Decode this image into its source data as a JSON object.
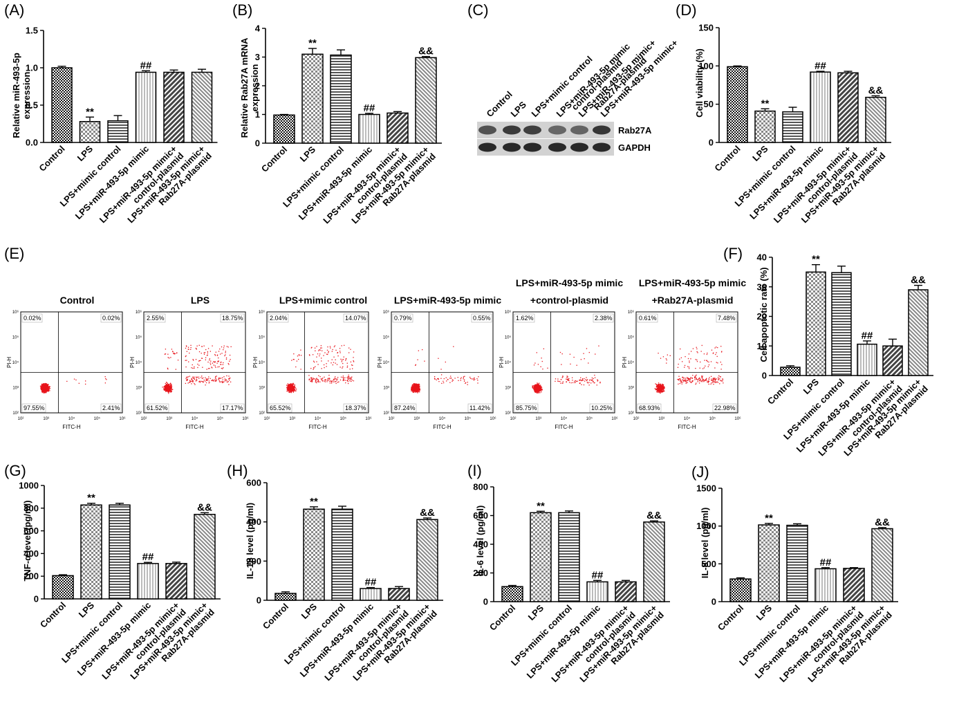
{
  "colors": {
    "axis": "#000000",
    "dots": "#e8141b",
    "bar_edge": "#000000",
    "blot_bg": "#d2d2d2",
    "blot_band": "#202020"
  },
  "categories_full": [
    "Control",
    "LPS",
    "LPS+mimic control",
    "LPS+miR-493-5p mimic",
    "LPS+miR-493-5p mimic+\ncontrol-plasmid",
    "LPS+miR-493-5p mimic+\nRab27A-plasmid"
  ],
  "chart_data": [
    {
      "id": "A",
      "type": "bar",
      "panel_label": "(A)",
      "ylabel": "Relative miR-493-5p\nexpression",
      "ylim": [
        0,
        1.5
      ],
      "yticks": [
        "0.0",
        "0.5",
        "1.0",
        "1.5"
      ],
      "tickvals": [
        0,
        0.5,
        1.0,
        1.5
      ],
      "values": [
        1.0,
        0.28,
        0.29,
        0.94,
        0.94,
        0.94
      ],
      "errors": [
        0.02,
        0.06,
        0.07,
        0.02,
        0.03,
        0.04
      ],
      "sig": [
        "",
        "**",
        "",
        "##",
        "",
        ""
      ]
    },
    {
      "id": "B",
      "type": "bar",
      "panel_label": "(B)",
      "ylabel": "Relative Rab27A mRNA\nexpression",
      "ylim": [
        0,
        4
      ],
      "yticks": [
        "0",
        "1",
        "2",
        "3",
        "4"
      ],
      "tickvals": [
        0,
        1,
        2,
        3,
        4
      ],
      "values": [
        0.98,
        3.1,
        3.07,
        1.0,
        1.05,
        2.98
      ],
      "errors": [
        0.02,
        0.2,
        0.18,
        0.04,
        0.05,
        0.04
      ],
      "sig": [
        "",
        "**",
        "",
        "##",
        "",
        "&&"
      ]
    },
    {
      "id": "D",
      "type": "bar",
      "panel_label": "(D)",
      "ylabel": "Cell viability (%)",
      "ylim": [
        0,
        150
      ],
      "yticks": [
        "0",
        "50",
        "100",
        "150"
      ],
      "tickvals": [
        0,
        50,
        100,
        150
      ],
      "values": [
        99,
        41,
        40,
        92,
        91,
        59
      ],
      "errors": [
        1,
        3,
        6,
        1,
        2,
        2
      ],
      "sig": [
        "",
        "**",
        "",
        "##",
        "",
        "&&"
      ]
    },
    {
      "id": "F",
      "type": "bar",
      "panel_label": "(F)",
      "ylabel": "Cell apoptotic rate (%)",
      "ylim": [
        0,
        40
      ],
      "yticks": [
        "0",
        "10",
        "20",
        "30",
        "40"
      ],
      "tickvals": [
        0,
        10,
        20,
        30,
        40
      ],
      "values": [
        2.8,
        35,
        34.8,
        10.6,
        10,
        29
      ],
      "errors": [
        0.5,
        2.5,
        2.2,
        1.1,
        2.3,
        1.5
      ],
      "sig": [
        "",
        "**",
        "",
        "##",
        "",
        "&&"
      ]
    },
    {
      "id": "G",
      "type": "bar",
      "panel_label": "(G)",
      "ylabel": "TNF-α level (pg/ml)",
      "ylim": [
        0,
        1000
      ],
      "yticks": [
        "0",
        "200",
        "400",
        "600",
        "800",
        "1000"
      ],
      "tickvals": [
        0,
        200,
        400,
        600,
        800,
        1000
      ],
      "values": [
        205,
        828,
        828,
        312,
        312,
        745
      ],
      "errors": [
        8,
        15,
        15,
        10,
        12,
        15
      ],
      "sig": [
        "",
        "**",
        "",
        "##",
        "",
        "&&"
      ]
    },
    {
      "id": "H",
      "type": "bar",
      "panel_label": "(H)",
      "ylabel": "IL-1β level (pg/ml)",
      "ylim": [
        0,
        600
      ],
      "yticks": [
        "0",
        "200",
        "400",
        "600"
      ],
      "tickvals": [
        0,
        200,
        400,
        600
      ],
      "values": [
        35,
        465,
        465,
        60,
        60,
        412
      ],
      "errors": [
        8,
        12,
        15,
        5,
        10,
        8
      ],
      "sig": [
        "",
        "**",
        "",
        "##",
        "",
        "&&"
      ]
    },
    {
      "id": "I",
      "type": "bar",
      "panel_label": "(I)",
      "ylabel": "IL-6 level (pg/ml)",
      "ylim": [
        0,
        800
      ],
      "yticks": [
        "0",
        "200",
        "400",
        "600",
        "800"
      ],
      "tickvals": [
        0,
        200,
        400,
        600,
        800
      ],
      "values": [
        105,
        620,
        620,
        138,
        138,
        555
      ],
      "errors": [
        8,
        10,
        12,
        10,
        10,
        8
      ],
      "sig": [
        "",
        "**",
        "",
        "##",
        "",
        "&&"
      ]
    },
    {
      "id": "J",
      "type": "bar",
      "panel_label": "(J)",
      "ylabel": "IL-8 level (pg/ml)",
      "ylim": [
        0,
        1500
      ],
      "yticks": [
        "0",
        "500",
        "1000",
        "1500"
      ],
      "tickvals": [
        0,
        500,
        1000,
        1500
      ],
      "values": [
        300,
        1015,
        1010,
        435,
        440,
        965
      ],
      "errors": [
        15,
        20,
        20,
        15,
        10,
        15
      ],
      "sig": [
        "",
        "**",
        "",
        "##",
        "",
        "&&"
      ]
    }
  ],
  "western": {
    "panel_label": "(C)",
    "lanes": [
      "Control",
      "LPS",
      "LPS+mimic control",
      "LPS+miR-493-5p mimic",
      "LPS+miR-493-5p mimic+\ncontrol-plasmid",
      "LPS+miR-493-5p mimic+\nRab27A-plasmid"
    ],
    "bands": [
      {
        "name": "Rab27A",
        "intensity": [
          0.72,
          0.85,
          0.82,
          0.6,
          0.62,
          0.88
        ]
      },
      {
        "name": "GAPDH",
        "intensity": [
          0.95,
          0.95,
          0.95,
          0.95,
          0.95,
          0.95
        ]
      }
    ]
  },
  "flow": {
    "panel_label": "(E)",
    "x_label": "FITC-H",
    "y_label": "PI-H",
    "ticks": [
      "10²",
      "10³",
      "10⁴",
      "10⁵",
      "10⁶"
    ],
    "plots": [
      {
        "title": "Control",
        "title2": "",
        "q": [
          "0.02%",
          "0.02%",
          "97.55%",
          "2.41%"
        ]
      },
      {
        "title": "LPS",
        "title2": "",
        "q": [
          "2.55%",
          "18.75%",
          "61.52%",
          "17.17%"
        ]
      },
      {
        "title": "LPS+mimic control",
        "title2": "",
        "q": [
          "2.04%",
          "14.07%",
          "65.52%",
          "18.37%"
        ]
      },
      {
        "title": "LPS+miR-493-5p mimic",
        "title2": "",
        "q": [
          "0.79%",
          "0.55%",
          "87.24%",
          "11.42%"
        ]
      },
      {
        "title": "LPS+miR-493-5p mimic",
        "title2": "+control-plasmid",
        "q": [
          "1.62%",
          "2.38%",
          "85.75%",
          "10.25%"
        ]
      },
      {
        "title": "LPS+miR-493-5p mimic",
        "title2": "+Rab27A-plasmid",
        "q": [
          "0.61%",
          "7.48%",
          "68.93%",
          "22.98%"
        ]
      }
    ]
  }
}
